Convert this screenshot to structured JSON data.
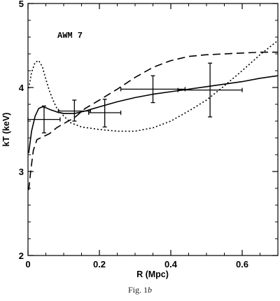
{
  "chart_data": {
    "type": "line",
    "annotation": "AWM 7",
    "xlabel": "R (Mpc)",
    "ylabel": "kT (keV)",
    "xlim": [
      0,
      0.7
    ],
    "ylim": [
      2,
      5
    ],
    "x_ticks": [
      {
        "v": 0,
        "label": "0"
      },
      {
        "v": 0.2,
        "label": "0.2"
      },
      {
        "v": 0.4,
        "label": "0.4"
      },
      {
        "v": 0.6,
        "label": "0.6"
      }
    ],
    "y_ticks": [
      {
        "v": 2,
        "label": "2"
      },
      {
        "v": 3,
        "label": "3"
      },
      {
        "v": 4,
        "label": "4"
      },
      {
        "v": 5,
        "label": "5"
      }
    ],
    "x_minor_step": 0.05,
    "y_minor_step": 0.2,
    "grid": false,
    "data_points": [
      {
        "x": 0.045,
        "y": 3.62,
        "xlo": 0.0,
        "xhi": 0.09,
        "ylo": 3.46,
        "yhi": 3.78
      },
      {
        "x": 0.13,
        "y": 3.72,
        "xlo": 0.085,
        "xhi": 0.175,
        "ylo": 3.6,
        "yhi": 3.85
      },
      {
        "x": 0.215,
        "y": 3.7,
        "xlo": 0.17,
        "xhi": 0.26,
        "ylo": 3.53,
        "yhi": 3.86
      },
      {
        "x": 0.35,
        "y": 3.98,
        "xlo": 0.26,
        "xhi": 0.44,
        "ylo": 3.82,
        "yhi": 4.14
      },
      {
        "x": 0.51,
        "y": 3.97,
        "xlo": 0.42,
        "xhi": 0.6,
        "ylo": 3.65,
        "yhi": 4.29
      }
    ],
    "series": [
      {
        "style": "solid",
        "points": [
          [
            0.002,
            3.22
          ],
          [
            0.01,
            3.48
          ],
          [
            0.02,
            3.66
          ],
          [
            0.03,
            3.75
          ],
          [
            0.04,
            3.77
          ],
          [
            0.05,
            3.76
          ],
          [
            0.06,
            3.74
          ],
          [
            0.08,
            3.71
          ],
          [
            0.1,
            3.69
          ],
          [
            0.13,
            3.69
          ],
          [
            0.16,
            3.72
          ],
          [
            0.2,
            3.77
          ],
          [
            0.25,
            3.83
          ],
          [
            0.3,
            3.88
          ],
          [
            0.35,
            3.92
          ],
          [
            0.4,
            3.95
          ],
          [
            0.45,
            3.98
          ],
          [
            0.5,
            4.01
          ],
          [
            0.55,
            4.04
          ],
          [
            0.6,
            4.07
          ],
          [
            0.65,
            4.11
          ],
          [
            0.7,
            4.14
          ]
        ]
      },
      {
        "style": "dashed",
        "points": [
          [
            0.002,
            2.78
          ],
          [
            0.008,
            3.02
          ],
          [
            0.015,
            3.25
          ],
          [
            0.025,
            3.38
          ],
          [
            0.04,
            3.41
          ],
          [
            0.06,
            3.45
          ],
          [
            0.08,
            3.52
          ],
          [
            0.1,
            3.57
          ],
          [
            0.13,
            3.64
          ],
          [
            0.16,
            3.75
          ],
          [
            0.2,
            3.85
          ],
          [
            0.25,
            3.98
          ],
          [
            0.3,
            4.12
          ],
          [
            0.35,
            4.24
          ],
          [
            0.4,
            4.32
          ],
          [
            0.45,
            4.37
          ],
          [
            0.5,
            4.39
          ],
          [
            0.55,
            4.4
          ],
          [
            0.6,
            4.41
          ],
          [
            0.65,
            4.42
          ],
          [
            0.7,
            4.42
          ]
        ]
      },
      {
        "style": "dotted",
        "points": [
          [
            0.002,
            3.99
          ],
          [
            0.01,
            4.18
          ],
          [
            0.02,
            4.3
          ],
          [
            0.03,
            4.32
          ],
          [
            0.04,
            4.25
          ],
          [
            0.05,
            4.1
          ],
          [
            0.06,
            3.96
          ],
          [
            0.07,
            3.85
          ],
          [
            0.08,
            3.76
          ],
          [
            0.1,
            3.66
          ],
          [
            0.12,
            3.58
          ],
          [
            0.15,
            3.53
          ],
          [
            0.2,
            3.5
          ],
          [
            0.25,
            3.48
          ],
          [
            0.3,
            3.48
          ],
          [
            0.35,
            3.52
          ],
          [
            0.4,
            3.6
          ],
          [
            0.45,
            3.72
          ],
          [
            0.5,
            3.85
          ],
          [
            0.55,
            4.02
          ],
          [
            0.6,
            4.2
          ],
          [
            0.65,
            4.39
          ],
          [
            0.7,
            4.56
          ]
        ]
      }
    ]
  },
  "caption": {
    "prefix": "Fig. 1",
    "suffix": "b"
  }
}
